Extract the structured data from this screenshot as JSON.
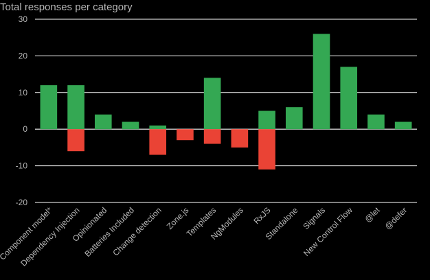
{
  "chart_data": {
    "type": "bar",
    "title": "Total responses per category",
    "xlabel": "",
    "ylabel": "",
    "ylim": [
      -20,
      30
    ],
    "yticks": [
      30,
      20,
      10,
      0,
      -10,
      -20
    ],
    "grid": true,
    "legend": "none",
    "categories": [
      "Component model*",
      "Dependency Injection",
      "Opinionated",
      "Batteries Included",
      "Change detection",
      "Zone.js",
      "Templates",
      "NgModules",
      "RxJS",
      "Standalone",
      "Signals",
      "New Control Flow",
      "@let",
      "@defer"
    ],
    "series": [
      {
        "values": [
          12,
          12,
          4,
          2,
          1,
          0,
          14,
          0,
          5,
          6,
          26,
          17,
          4,
          2
        ]
      },
      {
        "values": [
          0,
          -6,
          0,
          0,
          -7,
          -3,
          -4,
          -5,
          -11,
          0,
          0,
          0,
          0,
          0
        ]
      }
    ],
    "colors": {
      "positive": "#34a853",
      "negative": "#ea4335",
      "grid": "#ffffff",
      "text": "#b7b7b7",
      "background": "#000000"
    }
  }
}
